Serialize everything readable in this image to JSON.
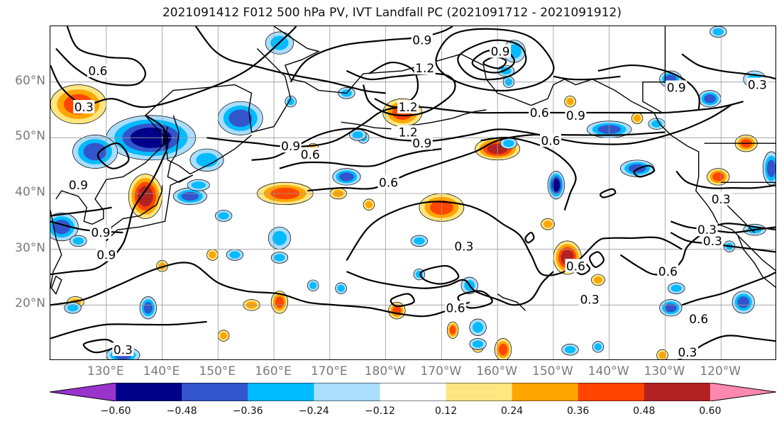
{
  "title": "2021091412 F012 500 hPa PV, IVT Landfall PC (2021091712 - 2021091912)",
  "lat_labels": [
    {
      "text": "60°N",
      "lat": 60
    },
    {
      "text": "50°N",
      "lat": 50
    },
    {
      "text": "40°N",
      "lat": 40
    },
    {
      "text": "30°N",
      "lat": 30
    },
    {
      "text": "20°N",
      "lat": 20
    }
  ],
  "lon_labels": [
    {
      "text": "130°E",
      "lon": 130
    },
    {
      "text": "140°E",
      "lon": 140
    },
    {
      "text": "150°E",
      "lon": 150
    },
    {
      "text": "160°E",
      "lon": 160
    },
    {
      "text": "170°E",
      "lon": 170
    },
    {
      "text": "180°W",
      "lon": 180
    },
    {
      "text": "170°W",
      "lon": 190
    },
    {
      "text": "160°W",
      "lon": 200
    },
    {
      "text": "150°W",
      "lon": 210
    },
    {
      "text": "140°W",
      "lon": 220
    },
    {
      "text": "130°W",
      "lon": 230
    },
    {
      "text": "120°W",
      "lon": 240
    }
  ],
  "colorbar": {
    "colors": [
      "#9933cc",
      "#000088",
      "#3355cc",
      "#00bbff",
      "#aaddff",
      "#ffffff",
      "#ffe680",
      "#ffa500",
      "#ff4500",
      "#b22222",
      "#ff88b0"
    ],
    "ticks": [
      "−0.60",
      "−0.48",
      "−0.36",
      "−0.24",
      "−0.12",
      "0.12",
      "0.24",
      "0.36",
      "0.48",
      "0.60"
    ]
  },
  "contour_labels": [
    {
      "text": "0.9",
      "lon": 186.5,
      "lat": 67.5
    },
    {
      "text": "0.9",
      "lon": 200.5,
      "lat": 65.5
    },
    {
      "text": "1.2",
      "lon": 187.0,
      "lat": 62.5
    },
    {
      "text": "1.2",
      "lon": 184.0,
      "lat": 55.5
    },
    {
      "text": "1.2",
      "lon": 184.0,
      "lat": 51.0
    },
    {
      "text": "0.9",
      "lon": 186.5,
      "lat": 49.0
    },
    {
      "text": "0.6",
      "lon": 128.5,
      "lat": 62.0
    },
    {
      "text": "0.3",
      "lon": 126.0,
      "lat": 55.5
    },
    {
      "text": "0.9",
      "lon": 163.0,
      "lat": 48.5
    },
    {
      "text": "0.6",
      "lon": 166.5,
      "lat": 47.0
    },
    {
      "text": "0.6",
      "lon": 180.5,
      "lat": 42.0
    },
    {
      "text": "0.6",
      "lon": 207.5,
      "lat": 54.5
    },
    {
      "text": "0.6",
      "lon": 209.5,
      "lat": 49.5
    },
    {
      "text": "0.9",
      "lon": 214.0,
      "lat": 54.0
    },
    {
      "text": "0.9",
      "lon": 232.0,
      "lat": 59.0
    },
    {
      "text": "0.3",
      "lon": 246.5,
      "lat": 59.5
    },
    {
      "text": "0.3",
      "lon": 240.0,
      "lat": 39.0
    },
    {
      "text": "0.3",
      "lon": 237.5,
      "lat": 33.5
    },
    {
      "text": "0.3",
      "lon": 238.5,
      "lat": 31.5
    },
    {
      "text": "0.6",
      "lon": 230.5,
      "lat": 26.0
    },
    {
      "text": "0.6",
      "lon": 214.0,
      "lat": 27.0
    },
    {
      "text": "0.3",
      "lon": 194.0,
      "lat": 30.5
    },
    {
      "text": "0.6",
      "lon": 192.5,
      "lat": 19.5
    },
    {
      "text": "0.3",
      "lon": 216.5,
      "lat": 21.0
    },
    {
      "text": "0.6",
      "lon": 236.0,
      "lat": 17.5
    },
    {
      "text": "0.3",
      "lon": 234.0,
      "lat": 11.5
    },
    {
      "text": "0.3",
      "lon": 133.0,
      "lat": 12.0
    },
    {
      "text": "0.9",
      "lon": 129.0,
      "lat": 33.0
    },
    {
      "text": "0.9",
      "lon": 130.0,
      "lat": 29.0
    },
    {
      "text": "0.9",
      "lon": 125.0,
      "lat": 41.5
    }
  ]
}
